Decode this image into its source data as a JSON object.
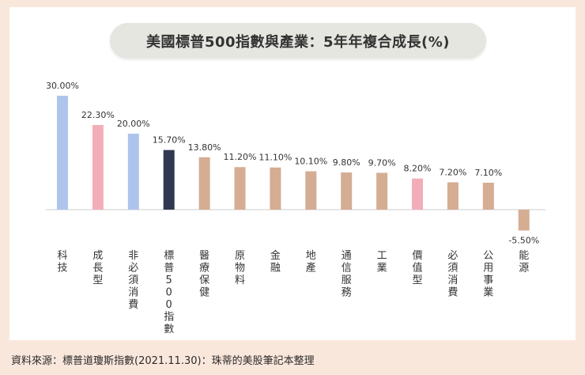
{
  "chart_data": {
    "type": "bar",
    "title": "美國標普500指數與產業：5年年複合成長(%)",
    "xlabel": "",
    "ylabel": "",
    "ylim": [
      -6,
      30
    ],
    "categories": [
      "科技",
      "成長型",
      "非必須消費",
      "標普500指數",
      "醫療保健",
      "原物料",
      "金融",
      "地產",
      "通信服務",
      "工業",
      "價值型",
      "必須消費",
      "公用事業",
      "能源"
    ],
    "values": [
      30.0,
      22.3,
      20.0,
      15.7,
      13.8,
      11.2,
      11.1,
      10.1,
      9.8,
      9.7,
      8.2,
      7.2,
      7.1,
      -5.5
    ],
    "value_labels": [
      "30.00%",
      "22.30%",
      "20.00%",
      "15.70%",
      "13.80%",
      "11.20%",
      "11.10%",
      "10.10%",
      "9.80%",
      "9.70%",
      "8.20%",
      "7.20%",
      "7.10%",
      "-5.50%"
    ],
    "bar_colors": [
      "#aec4ec",
      "#f2aeb8",
      "#aec4ec",
      "#303851",
      "#d4ad93",
      "#d4ad93",
      "#d4ad93",
      "#d4ad93",
      "#d4ad93",
      "#d4ad93",
      "#f2aeb8",
      "#d4ad93",
      "#d4ad93",
      "#d4ad93"
    ],
    "grid": false,
    "legend": "none"
  },
  "source_note": "資料來源：標普道瓊斯指數(2021.11.30)：珠蒂的美股筆記本整理",
  "colors": {
    "background": "#fae7dc",
    "card": "#ffffff",
    "title_pill": "#e6e6e0",
    "axis": "#cccccc",
    "text": "#333333"
  }
}
